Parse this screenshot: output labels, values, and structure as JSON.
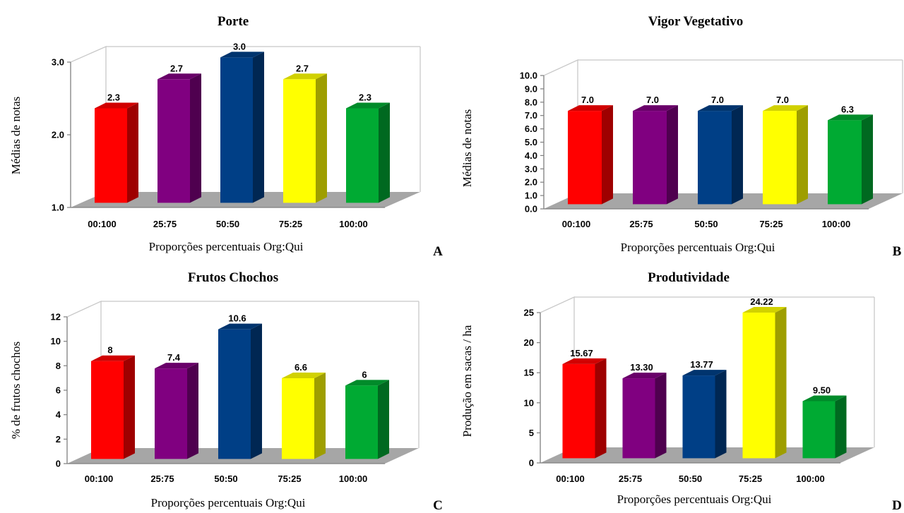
{
  "categories_xlabel": "Proporções percentuais Org:Qui",
  "colors": {
    "red": "#FF0000",
    "purple": "#800080",
    "navy": "#003F86",
    "yellow": "#FFFF00",
    "green": "#00AA33",
    "floor": "#A6A6A6",
    "wall_line": "#C8C8C8"
  },
  "chart_data": [
    {
      "type": "bar",
      "title": "Porte",
      "ylabel": "Médias de notas",
      "xlabel": "Proporções percentuais Org:Qui",
      "panel_letter": "A",
      "categories": [
        "00:100",
        "25:75",
        "50:50",
        "75:25",
        "100:00"
      ],
      "values": [
        2.3,
        2.7,
        3.0,
        2.7,
        2.3
      ],
      "value_labels": [
        "2.3",
        "2.7",
        "3.0",
        "2.7",
        "2.3"
      ],
      "ylim": [
        1.0,
        3.0
      ],
      "yticks": [
        "1.0",
        "2.0",
        "3.0"
      ],
      "bar_colors": [
        "#FF0000",
        "#800080",
        "#003F86",
        "#FFFF00",
        "#00AA33"
      ]
    },
    {
      "type": "bar",
      "title": "Vigor Vegetativo",
      "ylabel": "Médias de notas",
      "xlabel": "Proporções percentuais Org:Qui",
      "panel_letter": "B",
      "categories": [
        "00:100",
        "25:75",
        "50:50",
        "75:25",
        "100:00"
      ],
      "values": [
        7.0,
        7.0,
        7.0,
        7.0,
        6.3
      ],
      "value_labels": [
        "7.0",
        "7.0",
        "7.0",
        "7.0",
        "6.3"
      ],
      "ylim": [
        0.0,
        10.0
      ],
      "yticks": [
        "0.0",
        "1.0",
        "2.0",
        "3.0",
        "4.0",
        "5.0",
        "6.0",
        "7.0",
        "8.0",
        "9.0",
        "10.0"
      ],
      "bar_colors": [
        "#FF0000",
        "#800080",
        "#003F86",
        "#FFFF00",
        "#00AA33"
      ]
    },
    {
      "type": "bar",
      "title": "Frutos Chochos",
      "ylabel": "% de frutos chochos",
      "xlabel": "Proporções percentuais Org:Qui",
      "panel_letter": "C",
      "categories": [
        "00:100",
        "25:75",
        "50:50",
        "75:25",
        "100:00"
      ],
      "values": [
        8,
        7.4,
        10.6,
        6.6,
        6
      ],
      "value_labels": [
        "8",
        "7.4",
        "10.6",
        "6.6",
        "6"
      ],
      "ylim": [
        0,
        12
      ],
      "yticks": [
        "0",
        "2",
        "4",
        "6",
        "8",
        "10",
        "12"
      ],
      "bar_colors": [
        "#FF0000",
        "#800080",
        "#003F86",
        "#FFFF00",
        "#00AA33"
      ]
    },
    {
      "type": "bar",
      "title": "Produtividade",
      "ylabel": "Produção em sacas / ha",
      "xlabel": "Proporções percentuais Org:Qui",
      "panel_letter": "D",
      "categories": [
        "00:100",
        "25:75",
        "50:50",
        "75:25",
        "100:00"
      ],
      "values": [
        15.67,
        13.3,
        13.77,
        24.22,
        9.5
      ],
      "value_labels": [
        "15.67",
        "13.30",
        "13.77",
        "24.22",
        "9.50"
      ],
      "ylim": [
        0,
        25
      ],
      "yticks": [
        "0",
        "5",
        "10",
        "15",
        "20",
        "25"
      ],
      "bar_colors": [
        "#FF0000",
        "#800080",
        "#003F86",
        "#FFFF00",
        "#00AA33"
      ]
    }
  ]
}
